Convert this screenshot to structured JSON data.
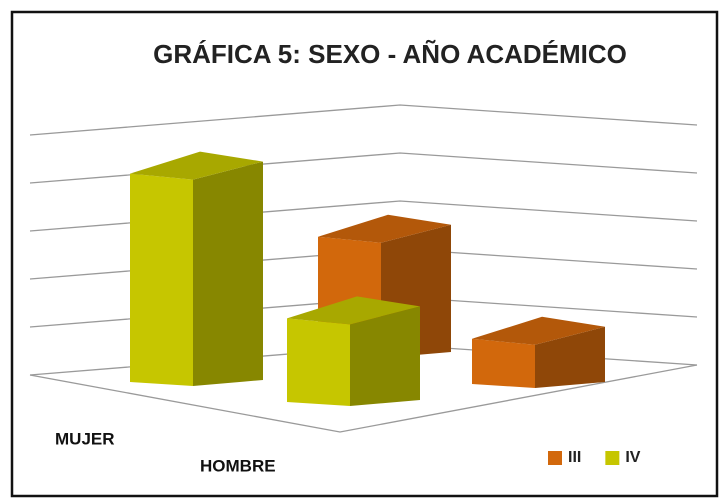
{
  "chart_data": {
    "type": "bar3d",
    "title": "GRÁFICA 5: SEXO - AÑO ACADÉMICO",
    "categories": [
      "MUJER",
      "HOMBRE"
    ],
    "series": [
      {
        "name": "III",
        "color": "#d2680c",
        "values": [
          2.4,
          0.9
        ]
      },
      {
        "name": "IV",
        "color": "#c6c600",
        "values": [
          4.3,
          1.7
        ]
      }
    ],
    "ylim": [
      0,
      5
    ],
    "yticks": [
      0,
      1,
      2,
      3,
      4,
      5
    ],
    "grid": true,
    "legend": "bottom-right"
  }
}
